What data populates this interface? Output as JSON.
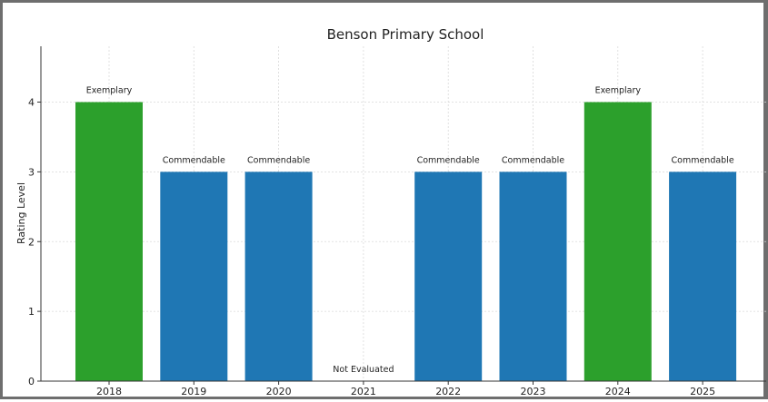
{
  "chart_data": {
    "type": "bar",
    "title": "Benson Primary School",
    "xlabel": "",
    "ylabel": "Rating Level",
    "categories": [
      "2018",
      "2019",
      "2020",
      "2021",
      "2022",
      "2023",
      "2024",
      "2025"
    ],
    "values": [
      4,
      3,
      3,
      0,
      3,
      3,
      4,
      3
    ],
    "data_labels": [
      "Exemplary",
      "Commendable",
      "Commendable",
      "Not Evaluated",
      "Commendable",
      "Commendable",
      "Exemplary",
      "Commendable"
    ],
    "bar_colors": [
      "#2ca02c",
      "#1f77b4",
      "#1f77b4",
      "#1f77b4",
      "#1f77b4",
      "#1f77b4",
      "#2ca02c",
      "#1f77b4"
    ],
    "yticks": [
      "0",
      "1",
      "2",
      "3",
      "4"
    ],
    "ylim": [
      0,
      4.8
    ],
    "grid": true,
    "legend": "none"
  }
}
